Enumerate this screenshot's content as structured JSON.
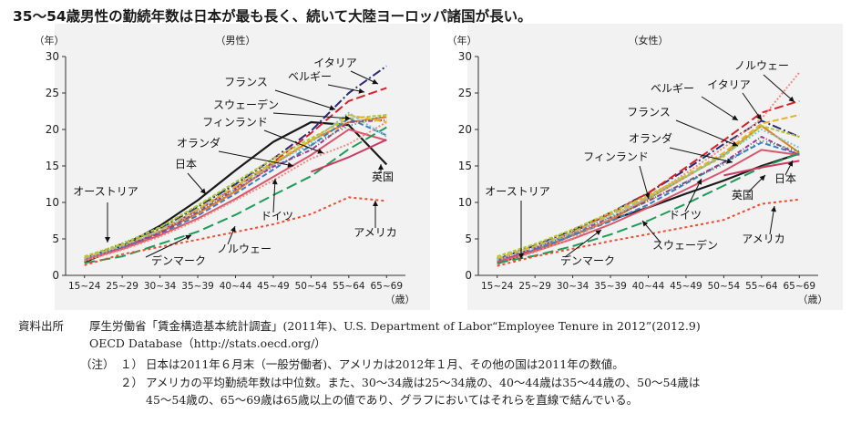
{
  "title": "35～54歳男性の勤続年数は日本が最も長く、続いて大陸ヨーロッパ諸国が長い。",
  "colors": {
    "日本": "#1a1a1a",
    "イタリア": "#2a2a7a",
    "ベルギー": "#d8212a",
    "フランス": "#e37e1f",
    "スウェーデン": "#3a7fc3",
    "フィンランド": "#9d3a8f",
    "オランダ": "#2f8f4a",
    "ドイツ": "#d9566b",
    "ノルウェー": "#f08b7c",
    "デンマーク": "#1e9b57",
    "英国": "#cc3a5f",
    "アメリカ": "#ef4c2e",
    "オーストリア": "#b3c634",
    "extra1": "#e3b427",
    "extra2": "#7fc6d0"
  },
  "chart_data": [
    {
      "type": "line",
      "title": "（男性）",
      "ylabel": "（年）",
      "xlabel": "（歳）",
      "ylim": [
        0,
        30
      ],
      "yticks": [
        0,
        5,
        10,
        15,
        20,
        25,
        30
      ],
      "categories": [
        "15~24",
        "25~29",
        "30~34",
        "35~39",
        "40~44",
        "45~49",
        "50~54",
        "55~64",
        "65~69"
      ],
      "series": [
        {
          "name": "日本",
          "values": [
            1.8,
            4.0,
            6.8,
            10.3,
            14.4,
            18.3,
            21.0,
            20.6,
            15.2
          ]
        },
        {
          "name": "イタリア",
          "values": [
            2.3,
            4.3,
            6.4,
            9.4,
            12.5,
            16.0,
            19.8,
            25.0,
            28.7
          ]
        },
        {
          "name": "ベルギー",
          "values": [
            2.1,
            3.9,
            6.0,
            9.0,
            12.0,
            15.5,
            19.5,
            23.9,
            25.7
          ]
        },
        {
          "name": "フランス",
          "values": [
            2.0,
            3.8,
            5.9,
            8.5,
            11.5,
            15.2,
            18.5,
            21.0,
            21.7
          ]
        },
        {
          "name": "スウェーデン",
          "values": [
            2.2,
            3.8,
            5.7,
            8.2,
            11.2,
            14.5,
            17.8,
            21.5,
            19.2
          ]
        },
        {
          "name": "フィンランド",
          "values": [
            2.2,
            3.9,
            5.8,
            8.7,
            11.8,
            14.9,
            17.2,
            21.0,
            21.3
          ]
        },
        {
          "name": "オランダ",
          "values": [
            2.4,
            4.4,
            6.5,
            9.5,
            12.6,
            15.5,
            17.9,
            20.5,
            22.0
          ]
        },
        {
          "name": "ドイツ",
          "values": [
            2.1,
            3.6,
            5.5,
            7.8,
            10.5,
            13.5,
            16.5,
            20.0,
            18.5
          ]
        },
        {
          "name": "ノルウェー",
          "values": [
            2.0,
            3.5,
            5.3,
            7.6,
            10.3,
            13.0,
            16.0,
            18.0,
            21.0
          ]
        },
        {
          "name": "デンマーク",
          "values": [
            1.7,
            2.6,
            4.3,
            6.0,
            8.3,
            11.0,
            13.6,
            17.3,
            20.3
          ]
        },
        {
          "name": "英国",
          "values": [
            null,
            null,
            null,
            null,
            null,
            null,
            14.2,
            16.2,
            18.6
          ]
        },
        {
          "name": "アメリカ",
          "values": [
            1.4,
            2.9,
            null,
            4.9,
            null,
            7.0,
            8.4,
            10.7,
            10.2
          ]
        },
        {
          "name": "オーストリア",
          "values": [
            2.6,
            4.3,
            6.6,
            9.6,
            12.8,
            16.0,
            18.8,
            21.5,
            22.0
          ]
        },
        {
          "name": "",
          "values": [
            2.4,
            4.1,
            6.2,
            9.1,
            12.2,
            15.5,
            18.5,
            22.0,
            21.0
          ]
        },
        {
          "name": "",
          "values": [
            2.3,
            4.0,
            6.1,
            8.9,
            11.9,
            15.2,
            18.2,
            22.3,
            19.0
          ]
        }
      ],
      "labels": [
        "イタリア",
        "ベルギー",
        "フランス",
        "スウェーデン",
        "フィンランド",
        "オランダ",
        "日本",
        "オーストリア",
        "英国",
        "ドイツ",
        "ノルウェー",
        "デンマーク",
        "アメリカ"
      ]
    },
    {
      "type": "line",
      "title": "（女性）",
      "ylabel": "（年）",
      "xlabel": "（歳）",
      "ylim": [
        0,
        30
      ],
      "yticks": [
        0,
        5,
        10,
        15,
        20,
        25,
        30
      ],
      "categories": [
        "15~24",
        "25~29",
        "30~34",
        "35~39",
        "40~44",
        "45~49",
        "50~54",
        "55~64",
        "65~69"
      ],
      "series": [
        {
          "name": "日本",
          "values": [
            1.6,
            3.4,
            5.5,
            7.6,
            9.3,
            11.2,
            13.0,
            15.0,
            16.7
          ]
        },
        {
          "name": "イタリア",
          "values": [
            2.2,
            4.1,
            6.2,
            8.6,
            11.3,
            14.5,
            18.0,
            21.2,
            19.0
          ]
        },
        {
          "name": "ベルギー",
          "values": [
            1.8,
            3.7,
            5.9,
            8.5,
            11.3,
            14.8,
            18.5,
            22.3,
            23.9
          ]
        },
        {
          "name": "フランス",
          "values": [
            1.8,
            3.4,
            5.5,
            7.6,
            10.5,
            13.5,
            16.5,
            20.5,
            16.8
          ]
        },
        {
          "name": "スウェーデン",
          "values": [
            1.7,
            3.5,
            5.5,
            7.4,
            9.7,
            12.6,
            15.5,
            18.2,
            16.6
          ]
        },
        {
          "name": "フィンランド",
          "values": [
            2.0,
            3.8,
            5.8,
            7.9,
            10.2,
            12.8,
            15.5,
            19.0,
            16.5
          ]
        },
        {
          "name": "オランダ",
          "values": [
            2.4,
            4.2,
            6.1,
            8.0,
            10.2,
            12.8,
            15.2,
            18.5,
            17.0
          ]
        },
        {
          "name": "ドイツ",
          "values": [
            1.8,
            3.3,
            5.0,
            7.0,
            9.3,
            11.8,
            14.3,
            17.2,
            16.5
          ]
        },
        {
          "name": "ノルウェー",
          "values": [
            1.6,
            3.2,
            5.1,
            7.8,
            10.7,
            14.0,
            17.5,
            21.5,
            27.8
          ]
        },
        {
          "name": "デンマーク",
          "values": [
            1.7,
            2.7,
            4.0,
            5.6,
            7.5,
            9.8,
            12.3,
            14.8,
            16.7
          ]
        },
        {
          "name": "英国",
          "values": [
            null,
            null,
            null,
            null,
            null,
            null,
            13.7,
            14.8,
            15.7
          ]
        },
        {
          "name": "アメリカ",
          "values": [
            1.3,
            2.6,
            null,
            4.7,
            null,
            6.6,
            7.6,
            9.8,
            10.4
          ]
        },
        {
          "name": "オーストリア",
          "values": [
            2.6,
            4.3,
            6.3,
            8.6,
            11.0,
            13.6,
            16.3,
            20.5,
            19.0
          ]
        },
        {
          "name": "",
          "values": [
            2.3,
            4.0,
            5.9,
            8.3,
            10.8,
            13.7,
            16.8,
            20.8,
            22.0
          ]
        },
        {
          "name": "",
          "values": [
            2.1,
            3.8,
            5.8,
            8.2,
            10.6,
            13.5,
            16.5,
            20.0,
            17.5
          ]
        }
      ],
      "labels": [
        "ノルウェー",
        "ベルギー",
        "イタリア",
        "フランス",
        "オランダ",
        "フィンランド",
        "オーストリア",
        "日本",
        "英国",
        "ドイツ",
        "スウェーデン",
        "デンマーク",
        "アメリカ"
      ]
    }
  ],
  "notes": {
    "source_label": "資料出所",
    "source_text_1": "厚生労働省「賃金構造基本統計調査」(2011年)、U.S. Department of Labor“Employee Tenure in 2012”(2012.9)",
    "source_text_2": "OECD Database（http://stats.oecd.org/）",
    "note_label": "（注）",
    "note1_num": "１）",
    "note1_text": "日本は2011年６月末（一般労働者)、アメリカは2012年１月、その他の国は2011年の数値。",
    "note2_num": "２）",
    "note2_text": "アメリカの平均勤続年数は中位数。また、30～34歳は25～34歳の、40～44歳は35～44歳の、50～54歳は",
    "note2_text_cont": "45～54歳の、65～69歳は65歳以上の値であり、グラフにおいてはそれらを直線で結んでいる。"
  }
}
